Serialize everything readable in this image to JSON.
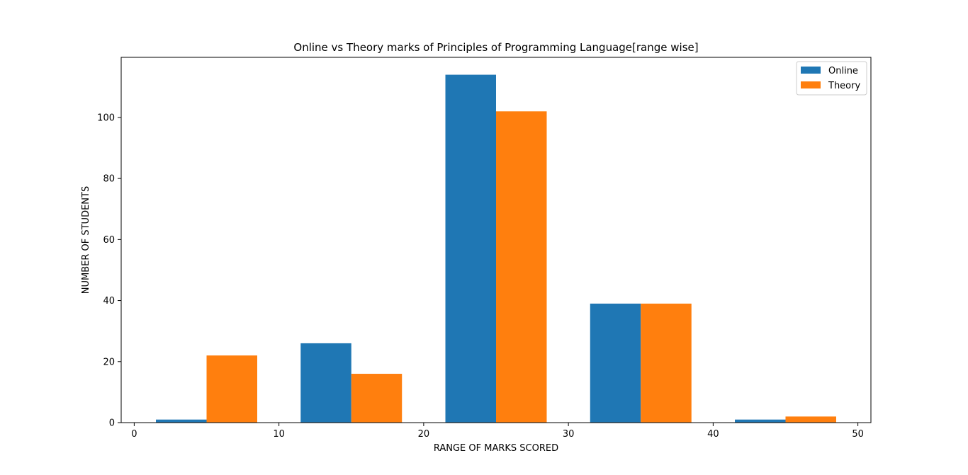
{
  "chart_data": {
    "type": "bar",
    "title": "Online vs Theory marks of Principles of Programming Language[range wise]",
    "xlabel": "RANGE OF MARKS SCORED",
    "ylabel": "NUMBER OF STUDENTS",
    "xlim": [
      -0.9,
      50.9
    ],
    "ylim": [
      0,
      119.7
    ],
    "x_ticks": [
      0,
      10,
      20,
      30,
      40,
      50
    ],
    "y_ticks": [
      0,
      20,
      40,
      60,
      80,
      100
    ],
    "bar_width": 3.5,
    "grid": false,
    "legend_position": "top-right",
    "series": [
      {
        "name": "Online",
        "color": "#1f77b4",
        "x": [
          1.5,
          11.5,
          21.5,
          31.5,
          41.5
        ],
        "values": [
          1,
          26,
          114,
          39,
          1
        ]
      },
      {
        "name": "Theory",
        "color": "#ff7f0e",
        "x": [
          5.0,
          15.0,
          25.0,
          35.0,
          45.0
        ],
        "values": [
          22,
          16,
          102,
          39,
          2
        ]
      }
    ]
  }
}
